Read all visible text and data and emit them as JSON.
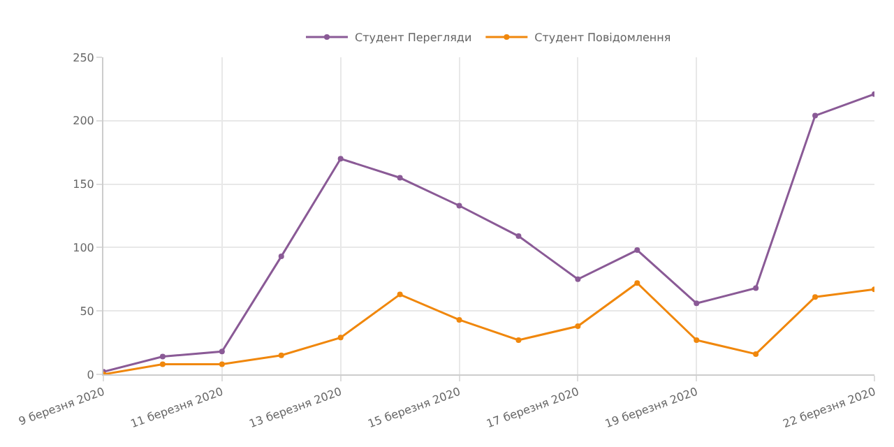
{
  "chart_data": {
    "type": "line",
    "x": [
      "2020-03-09",
      "2020-03-10",
      "2020-03-11",
      "2020-03-12",
      "2020-03-13",
      "2020-03-14",
      "2020-03-15",
      "2020-03-16",
      "2020-03-17",
      "2020-03-18",
      "2020-03-19",
      "2020-03-20",
      "2020-03-21",
      "2020-03-22"
    ],
    "series": [
      {
        "name": "Студент Перегляди",
        "color": "#8a5a96",
        "values": [
          2,
          14,
          18,
          93,
          170,
          155,
          133,
          109,
          75,
          98,
          56,
          68,
          204,
          221
        ]
      },
      {
        "name": "Студент Повідомлення",
        "color": "#f0870c",
        "values": [
          0,
          8,
          8,
          15,
          29,
          63,
          43,
          27,
          38,
          72,
          27,
          16,
          61,
          67
        ]
      }
    ],
    "xlim": [
      "2020-03-09",
      "2020-03-22"
    ],
    "xticks": [
      {
        "value": "2020-03-09",
        "label": "9 березня 2020"
      },
      {
        "value": "2020-03-11",
        "label": "11 березня 2020"
      },
      {
        "value": "2020-03-13",
        "label": "13 березня 2020"
      },
      {
        "value": "2020-03-15",
        "label": "15 березня 2020"
      },
      {
        "value": "2020-03-17",
        "label": "17 березня 2020"
      },
      {
        "value": "2020-03-19",
        "label": "19 березня 2020"
      },
      {
        "value": "2020-03-22",
        "label": "22 березня 2020"
      }
    ],
    "ylim": [
      0,
      250
    ],
    "yticks": [
      0,
      50,
      100,
      150,
      200,
      250
    ],
    "grid": true,
    "legend": "top",
    "marker": "circle",
    "line_style": "solid"
  }
}
